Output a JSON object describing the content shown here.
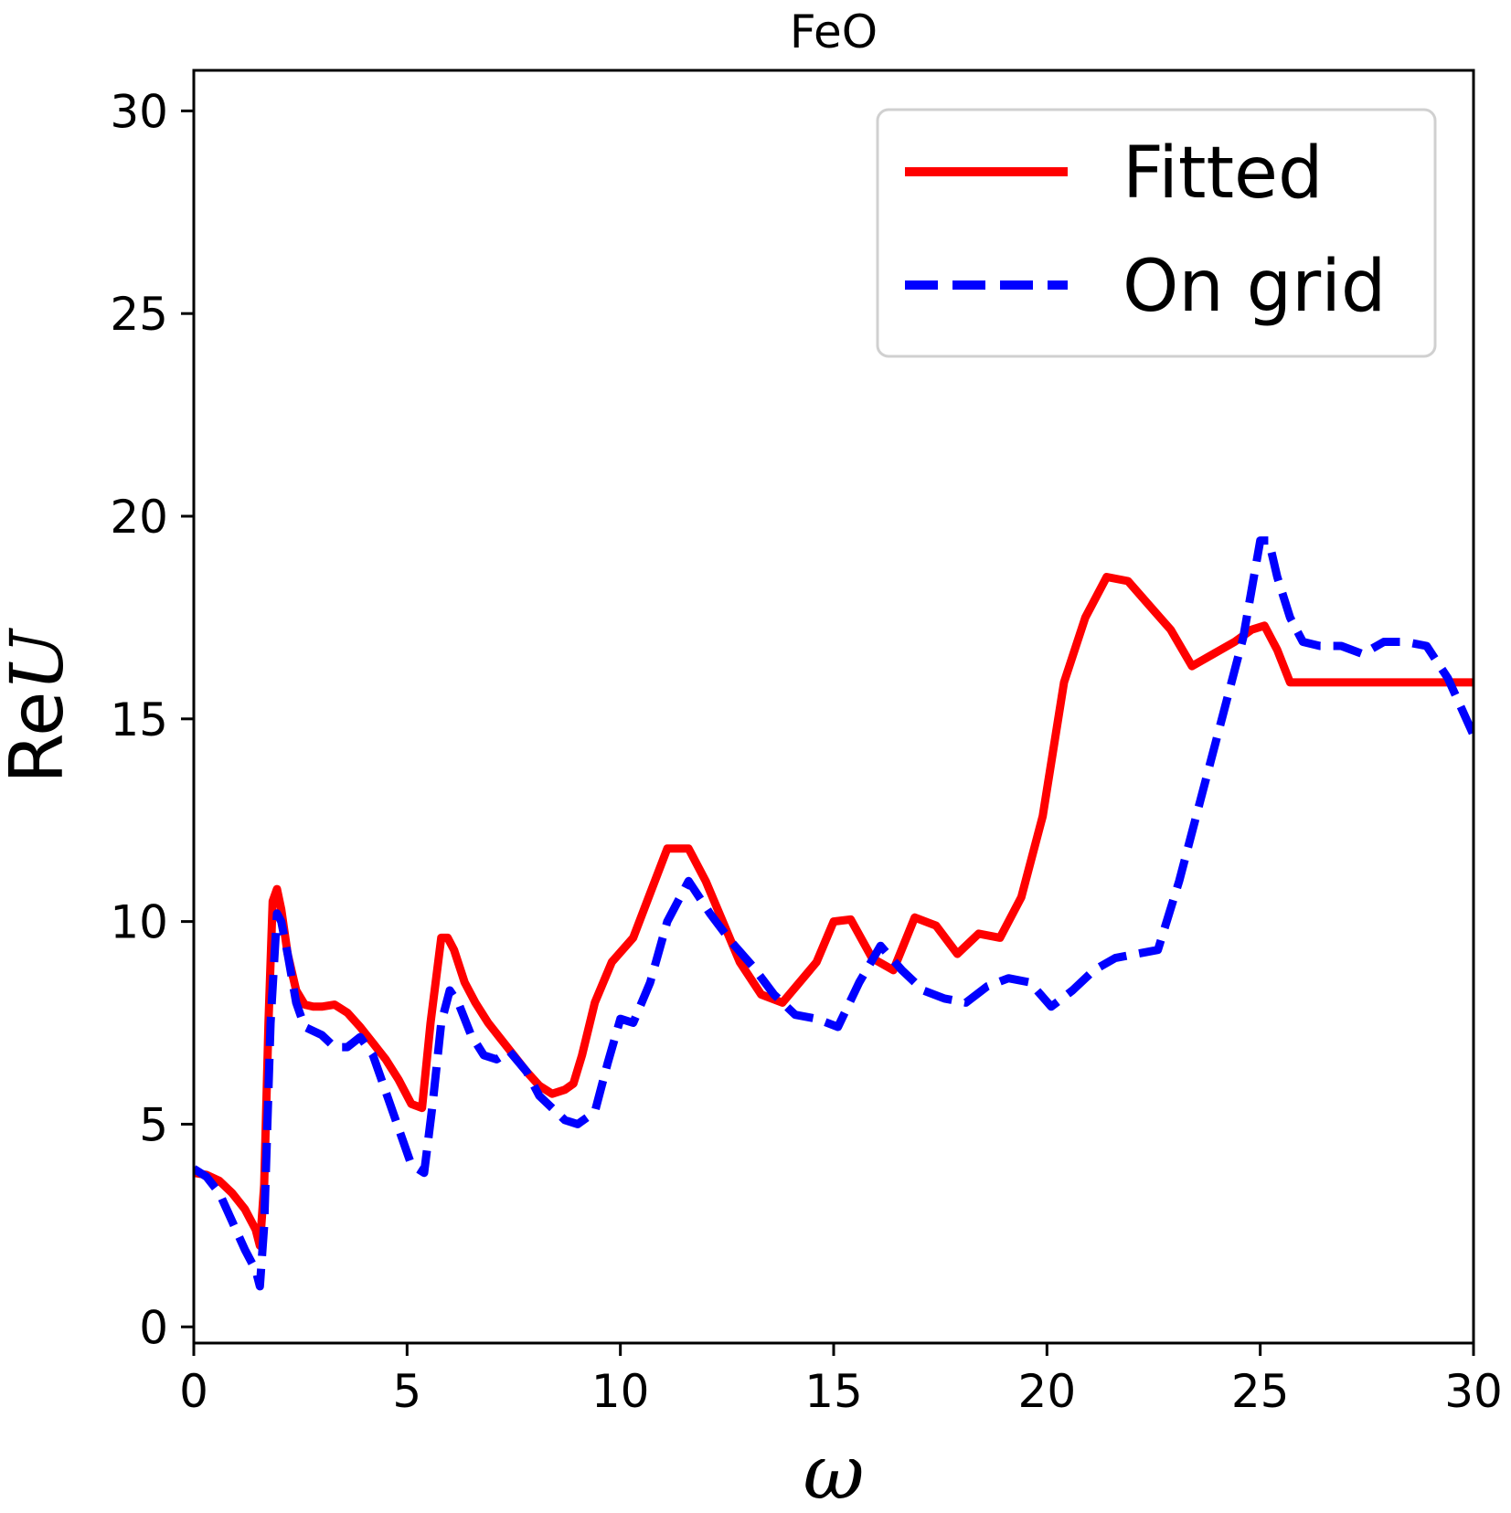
{
  "chart_data": {
    "type": "line",
    "title": "FeO",
    "xlabel": "ω",
    "ylabel_prefix": "Re",
    "ylabel_var": "U",
    "xlim": [
      0,
      30
    ],
    "ylim": [
      -0.4,
      31
    ],
    "xticks": [
      0,
      5,
      10,
      15,
      20,
      25,
      30
    ],
    "yticks": [
      0,
      5,
      10,
      15,
      20,
      25,
      30
    ],
    "grid": false,
    "legend_position": "top-right",
    "series": [
      {
        "name": "Fitted",
        "color": "#ff0000",
        "style": "solid",
        "x": [
          0,
          0.3,
          0.6,
          0.9,
          1.2,
          1.45,
          1.55,
          1.65,
          1.75,
          1.85,
          1.95,
          2.05,
          2.2,
          2.4,
          2.6,
          2.8,
          3.0,
          3.3,
          3.6,
          3.9,
          4.2,
          4.5,
          4.8,
          5.1,
          5.35,
          5.55,
          5.8,
          5.95,
          6.1,
          6.35,
          6.6,
          6.9,
          7.2,
          7.5,
          7.8,
          8.1,
          8.4,
          8.7,
          8.9,
          9.1,
          9.4,
          9.8,
          10.3,
          10.7,
          11.1,
          11.6,
          12.0,
          12.4,
          12.8,
          13.3,
          13.8,
          14.2,
          14.6,
          15.0,
          15.4,
          15.9,
          16.4,
          16.9,
          17.4,
          17.9,
          18.4,
          18.9,
          19.4,
          19.9,
          20.4,
          20.9,
          21.4,
          21.9,
          22.4,
          22.9,
          23.4,
          23.9,
          24.4,
          24.8,
          25.1,
          25.4,
          25.7,
          26.0,
          26.4,
          26.9,
          27.4,
          27.9,
          28.4,
          28.9,
          29.2,
          29.6,
          30.0
        ],
        "y": [
          3.8,
          3.75,
          3.6,
          3.3,
          2.9,
          2.4,
          2.0,
          3.5,
          7.5,
          10.5,
          10.8,
          10.3,
          9.2,
          8.3,
          7.95,
          7.9,
          7.9,
          7.95,
          7.75,
          7.4,
          7.0,
          6.6,
          6.1,
          5.5,
          5.4,
          7.5,
          9.6,
          9.6,
          9.3,
          8.5,
          8.0,
          7.5,
          7.1,
          6.7,
          6.3,
          5.95,
          5.75,
          5.85,
          6.0,
          6.7,
          8.0,
          9.0,
          9.6,
          10.7,
          11.8,
          11.8,
          11.0,
          10.0,
          9.0,
          8.2,
          8.0,
          8.5,
          9.0,
          10.0,
          10.05,
          9.1,
          8.8,
          10.1,
          9.9,
          9.2,
          9.7,
          9.6,
          10.6,
          12.6,
          15.9,
          17.5,
          18.5,
          18.4,
          17.8,
          17.2,
          16.3,
          16.6,
          16.9,
          17.2,
          17.3,
          16.7,
          15.9,
          15.9,
          15.9,
          15.9,
          15.9,
          15.9,
          15.9,
          15.9,
          15.9,
          15.9,
          15.9
        ]
      },
      {
        "name": "On grid",
        "color": "#0000ff",
        "style": "dashed",
        "x": [
          0,
          0.3,
          0.6,
          0.9,
          1.2,
          1.45,
          1.55,
          1.65,
          1.8,
          1.95,
          2.05,
          2.2,
          2.4,
          2.6,
          2.8,
          3.0,
          3.3,
          3.6,
          3.9,
          4.2,
          4.5,
          4.8,
          5.1,
          5.4,
          5.6,
          5.8,
          6.0,
          6.2,
          6.5,
          6.8,
          7.1,
          7.4,
          7.8,
          8.1,
          8.4,
          8.7,
          9.0,
          9.4,
          9.7,
          10.0,
          10.3,
          10.7,
          11.1,
          11.6,
          12.1,
          12.6,
          13.1,
          13.6,
          14.1,
          14.6,
          15.1,
          15.6,
          16.1,
          16.6,
          17.1,
          17.6,
          18.1,
          18.6,
          19.1,
          19.6,
          20.1,
          20.6,
          21.1,
          21.6,
          22.1,
          22.6,
          23.1,
          23.6,
          24.1,
          24.6,
          25.0,
          25.2,
          25.4,
          25.7,
          26.0,
          26.4,
          26.9,
          27.4,
          27.9,
          28.4,
          28.9,
          29.4,
          30.0
        ],
        "y": [
          3.9,
          3.7,
          3.3,
          2.6,
          1.9,
          1.4,
          1.0,
          2.5,
          7.5,
          10.2,
          10.0,
          9.2,
          8.0,
          7.4,
          7.3,
          7.2,
          6.9,
          6.9,
          7.15,
          6.7,
          5.8,
          4.9,
          4.0,
          3.8,
          5.5,
          7.5,
          8.3,
          8.0,
          7.2,
          6.7,
          6.6,
          6.8,
          6.3,
          5.7,
          5.4,
          5.1,
          5.0,
          5.3,
          6.5,
          7.6,
          7.5,
          8.5,
          10.0,
          11.0,
          10.2,
          9.5,
          8.9,
          8.2,
          7.7,
          7.6,
          7.4,
          8.5,
          9.4,
          8.8,
          8.3,
          8.1,
          8.0,
          8.4,
          8.6,
          8.5,
          7.9,
          8.3,
          8.8,
          9.1,
          9.2,
          9.3,
          11.0,
          13.0,
          15.0,
          17.0,
          19.4,
          19.4,
          18.5,
          17.5,
          16.9,
          16.8,
          16.8,
          16.6,
          16.9,
          16.9,
          16.8,
          16.0,
          14.6
        ]
      }
    ]
  }
}
